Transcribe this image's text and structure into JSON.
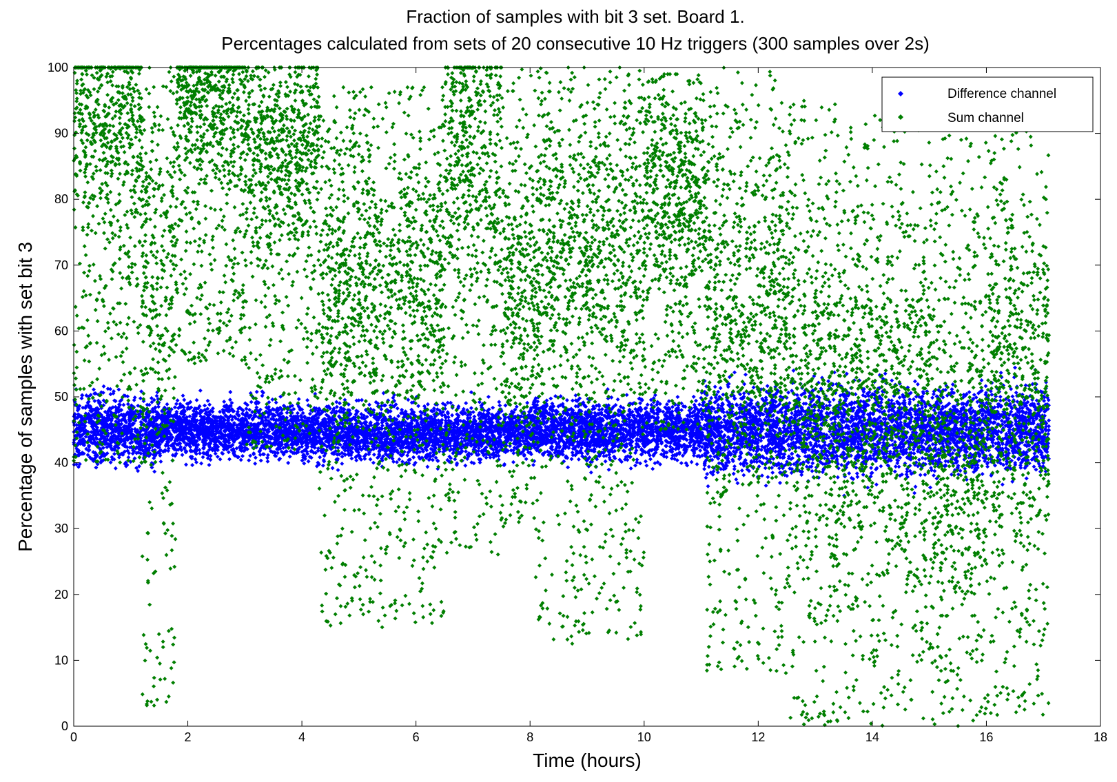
{
  "chart_data": {
    "type": "scatter",
    "title": "Fraction of samples with bit 3 set.  Board 1.",
    "subtitle": "Percentages calculated from sets of 20 consecutive 10 Hz triggers (300 samples over 2s)",
    "xlabel": "Time (hours)",
    "ylabel": "Percentage of samples with set bit 3",
    "xlim": [
      0,
      18
    ],
    "ylim": [
      0,
      100
    ],
    "xticks": [
      "0",
      "2",
      "4",
      "6",
      "8",
      "10",
      "12",
      "14",
      "16",
      "18"
    ],
    "yticks": [
      "0",
      "10",
      "20",
      "30",
      "40",
      "50",
      "60",
      "70",
      "80",
      "90",
      "100"
    ],
    "grid": false,
    "legend_position": "top-right",
    "marker": "diamond",
    "colors": {
      "difference": "#0000ff",
      "sum": "#007f00"
    },
    "series": [
      {
        "name": "Difference channel",
        "color": "#0000ff",
        "time_segments": [
          {
            "t": [
              0,
              1.5
            ],
            "mean": 45,
            "spread": 5.5
          },
          {
            "t": [
              1.5,
              4
            ],
            "mean": 45,
            "spread": 4.5
          },
          {
            "t": [
              4,
              8
            ],
            "mean": 44.5,
            "spread": 4.5
          },
          {
            "t": [
              8,
              11
            ],
            "mean": 45,
            "spread": 5
          },
          {
            "t": [
              11,
              17.1
            ],
            "mean": 45,
            "spread": 7
          }
        ]
      },
      {
        "name": "Sum channel",
        "color": "#007f00",
        "time_segments": [
          {
            "t": [
              0,
              1.2
            ],
            "center": 93,
            "low": 40,
            "high": 100
          },
          {
            "t": [
              1.2,
              1.8
            ],
            "center": 70,
            "low": 2,
            "high": 100
          },
          {
            "t": [
              1.8,
              3.0
            ],
            "center": 96,
            "low": 55,
            "high": 100
          },
          {
            "t": [
              3.0,
              4.3
            ],
            "center": 88,
            "low": 42,
            "high": 100
          },
          {
            "t": [
              4.3,
              6.5
            ],
            "center": 68,
            "low": 15,
            "high": 97
          },
          {
            "t": [
              6.5,
              7.5
            ],
            "center": 88,
            "low": 26,
            "high": 100
          },
          {
            "t": [
              7.5,
              8.1
            ],
            "center": 65,
            "low": 30,
            "high": 100
          },
          {
            "t": [
              8.1,
              10.0
            ],
            "center": 72,
            "low": 12,
            "high": 100
          },
          {
            "t": [
              10.0,
              11.1
            ],
            "center": 82,
            "low": 45,
            "high": 99
          },
          {
            "t": [
              11.1,
              12.5
            ],
            "center": 62,
            "low": 8,
            "high": 100
          },
          {
            "t": [
              12.5,
              15.0
            ],
            "center": 50,
            "low": 0,
            "high": 95
          },
          {
            "t": [
              15.0,
              16.0
            ],
            "center": 40,
            "low": 0,
            "high": 90
          },
          {
            "t": [
              16.0,
              17.1
            ],
            "center": 55,
            "low": 1,
            "high": 93
          }
        ]
      }
    ]
  }
}
